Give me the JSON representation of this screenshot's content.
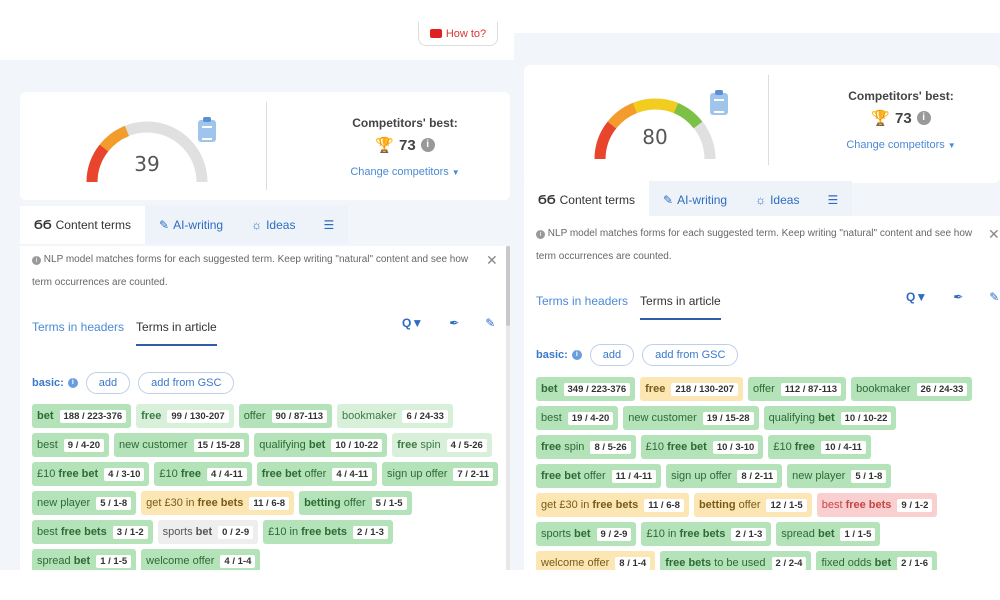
{
  "howto": {
    "label": "How to?"
  },
  "left": {
    "score": "39",
    "competitors": {
      "title": "Competitors' best:",
      "value": "73",
      "change": "Change competitors"
    },
    "tabs": [
      {
        "icon": "ϬϬ",
        "label": "Content terms"
      },
      {
        "icon": "✎",
        "label": "AI-writing"
      },
      {
        "icon": "☼",
        "label": "Ideas"
      },
      {
        "icon": "☰",
        "label": ""
      }
    ],
    "note": "NLP model matches forms for each suggested term. Keep writing \"natural\" content and see how term occurrences are counted.",
    "subtabs": [
      "Terms in headers",
      "Terms in article"
    ],
    "basic": {
      "label": "basic:",
      "add": "add",
      "add_gsc": "add from GSC"
    },
    "terms": [
      {
        "pre": "",
        "bold": "bet",
        "post": "",
        "cnt": "188 / 223-376",
        "c": "green"
      },
      {
        "pre": "",
        "bold": "free",
        "post": "",
        "cnt": "99 / 130-207",
        "c": "lightgreen"
      },
      {
        "pre": "offer",
        "bold": "",
        "post": "",
        "cnt": "90 / 87-113",
        "c": "green"
      },
      {
        "pre": "bookmaker",
        "bold": "",
        "post": "",
        "cnt": "6 / 24-33",
        "c": "lightgreen"
      },
      {
        "pre": "best",
        "bold": "",
        "post": "",
        "cnt": "9 / 4-20",
        "c": "green"
      },
      {
        "pre": "new customer",
        "bold": "",
        "post": "",
        "cnt": "15 / 15-28",
        "c": "green"
      },
      {
        "pre": "qualifying ",
        "bold": "bet",
        "post": "",
        "cnt": "10 / 10-22",
        "c": "green"
      },
      {
        "pre": "",
        "bold": "free",
        "post": " spin",
        "cnt": "4 / 5-26",
        "c": "lightgreen"
      },
      {
        "pre": "£10 ",
        "bold": "free bet",
        "post": "",
        "cnt": "4 / 3-10",
        "c": "green"
      },
      {
        "pre": "£10 ",
        "bold": "free",
        "post": "",
        "cnt": "4 / 4-11",
        "c": "green"
      },
      {
        "pre": "",
        "bold": "free bet",
        "post": " offer",
        "cnt": "4 / 4-11",
        "c": "green"
      },
      {
        "pre": "sign up offer",
        "bold": "",
        "post": "",
        "cnt": "7 / 2-11",
        "c": "green"
      },
      {
        "pre": "new player",
        "bold": "",
        "post": "",
        "cnt": "5 / 1-8",
        "c": "green"
      },
      {
        "pre": "get £30 in ",
        "bold": "free bets",
        "post": "",
        "cnt": "11 / 6-8",
        "c": "yellow"
      },
      {
        "pre": "",
        "bold": "betting",
        "post": " offer",
        "cnt": "5 / 1-5",
        "c": "green"
      },
      {
        "pre": "best ",
        "bold": "free bets",
        "post": "",
        "cnt": "3 / 1-2",
        "c": "green"
      },
      {
        "pre": "sports ",
        "bold": "bet",
        "post": "",
        "cnt": "0 / 2-9",
        "c": "grey"
      },
      {
        "pre": "£10 in ",
        "bold": "free bets",
        "post": "",
        "cnt": "2 / 1-3",
        "c": "green"
      },
      {
        "pre": "spread ",
        "bold": "bet",
        "post": "",
        "cnt": "1 / 1-5",
        "c": "green"
      },
      {
        "pre": "welcome offer",
        "bold": "",
        "post": "",
        "cnt": "4 / 1-4",
        "c": "green"
      }
    ]
  },
  "right": {
    "score": "80",
    "competitors": {
      "title": "Competitors' best:",
      "value": "73",
      "change": "Change competitors"
    },
    "tabs": [
      {
        "icon": "ϬϬ",
        "label": "Content terms"
      },
      {
        "icon": "✎",
        "label": "AI-writing"
      },
      {
        "icon": "☼",
        "label": "Ideas"
      },
      {
        "icon": "☰",
        "label": ""
      }
    ],
    "note": "NLP model matches forms for each suggested term. Keep writing \"natural\" content and see how term occurrences are counted.",
    "subtabs": [
      "Terms in headers",
      "Terms in article"
    ],
    "basic": {
      "label": "basic:",
      "add": "add",
      "add_gsc": "add from GSC"
    },
    "terms": [
      {
        "pre": "",
        "bold": "bet",
        "post": "",
        "cnt": "349 / 223-376",
        "c": "green"
      },
      {
        "pre": "",
        "bold": "free",
        "post": "",
        "cnt": "218 / 130-207",
        "c": "yellow"
      },
      {
        "pre": "offer",
        "bold": "",
        "post": "",
        "cnt": "112 / 87-113",
        "c": "green"
      },
      {
        "pre": "bookmaker",
        "bold": "",
        "post": "",
        "cnt": "26 / 24-33",
        "c": "green"
      },
      {
        "pre": "best",
        "bold": "",
        "post": "",
        "cnt": "19 / 4-20",
        "c": "green"
      },
      {
        "pre": "new customer",
        "bold": "",
        "post": "",
        "cnt": "19 / 15-28",
        "c": "green"
      },
      {
        "pre": "qualifying ",
        "bold": "bet",
        "post": "",
        "cnt": "10 / 10-22",
        "c": "green"
      },
      {
        "pre": "",
        "bold": "free",
        "post": " spin",
        "cnt": "8 / 5-26",
        "c": "green"
      },
      {
        "pre": "£10 ",
        "bold": "free bet",
        "post": "",
        "cnt": "10 / 3-10",
        "c": "green"
      },
      {
        "pre": "£10 ",
        "bold": "free",
        "post": "",
        "cnt": "10 / 4-11",
        "c": "green"
      },
      {
        "pre": "",
        "bold": "free bet",
        "post": " offer",
        "cnt": "11 / 4-11",
        "c": "green"
      },
      {
        "pre": "sign up offer",
        "bold": "",
        "post": "",
        "cnt": "8 / 2-11",
        "c": "green"
      },
      {
        "pre": "new player",
        "bold": "",
        "post": "",
        "cnt": "5 / 1-8",
        "c": "green"
      },
      {
        "pre": "get £30 in ",
        "bold": "free bets",
        "post": "",
        "cnt": "11 / 6-8",
        "c": "yellow"
      },
      {
        "pre": "",
        "bold": "betting",
        "post": " offer",
        "cnt": "12 / 1-5",
        "c": "yellow"
      },
      {
        "pre": "best ",
        "bold": "free bets",
        "post": "",
        "cnt": "9 / 1-2",
        "c": "red"
      },
      {
        "pre": "sports ",
        "bold": "bet",
        "post": "",
        "cnt": "9 / 2-9",
        "c": "green"
      },
      {
        "pre": "£10 in ",
        "bold": "free bets",
        "post": "",
        "cnt": "2 / 1-3",
        "c": "green"
      },
      {
        "pre": "spread ",
        "bold": "bet",
        "post": "",
        "cnt": "1 / 1-5",
        "c": "green"
      },
      {
        "pre": "welcome offer",
        "bold": "",
        "post": "",
        "cnt": "8 / 1-4",
        "c": "yellow"
      },
      {
        "pre": "",
        "bold": "free bets",
        "post": " to be used",
        "cnt": "2 / 2-4",
        "c": "green"
      },
      {
        "pre": "fixed odds ",
        "bold": "bet",
        "post": "",
        "cnt": "2 / 1-6",
        "c": "green"
      }
    ]
  },
  "colors": {
    "green": "#b4e2b9",
    "yellow": "#fbe6b4",
    "red": "#f9cfcf",
    "grey": "#eeeeee",
    "accent": "#2d6cc0"
  },
  "icons": {
    "trophy": "trophy-icon",
    "info": "info-icon",
    "clipboard": "clipboard-icon",
    "close": "close-icon",
    "search_filter": "search-filter-icon",
    "pen": "pen-icon",
    "pencil": "pencil-icon",
    "youtube": "youtube-icon"
  }
}
